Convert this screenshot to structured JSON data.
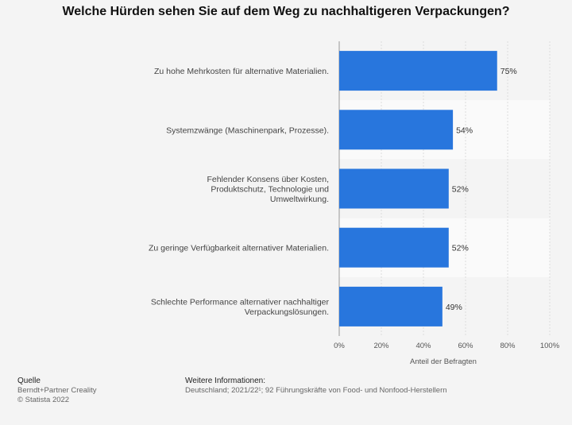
{
  "title": "Welche Hürden sehen Sie auf dem Weg zu nachhaltigeren Verpackungen?",
  "chart_data": {
    "type": "bar",
    "orientation": "horizontal",
    "categories": [
      [
        "Zu hohe Mehrkosten für alternative Materialien."
      ],
      [
        "Systemzwänge (Maschinenpark, Prozesse)."
      ],
      [
        "Fehlender Konsens über Kosten,",
        "Produktschutz, Technologie und",
        "Umweltwirkung."
      ],
      [
        "Zu geringe Verfügbarkeit alternativer Materialien."
      ],
      [
        "Schlechte Performance alternativer nachhaltiger",
        "Verpackungslösungen."
      ]
    ],
    "values": [
      75,
      54,
      52,
      52,
      49
    ],
    "value_labels": [
      "75%",
      "54%",
      "52%",
      "52%",
      "49%"
    ],
    "xlim": [
      0,
      100
    ],
    "xticks": [
      "0%",
      "20%",
      "40%",
      "60%",
      "80%",
      "100%"
    ],
    "xlabel": "Anteil der Befragten",
    "ylabel": "",
    "bar_color": "#2876dd",
    "grid": true
  },
  "footer": {
    "source_heading": "Quelle",
    "source_lines": [
      "Berndt+Partner Creality",
      "© Statista 2022"
    ],
    "info_heading": "Weitere Informationen:",
    "info_text": "Deutschland; 2021/22¹; 92 Führungskräfte von Food- und Nonfood-Herstellern"
  }
}
